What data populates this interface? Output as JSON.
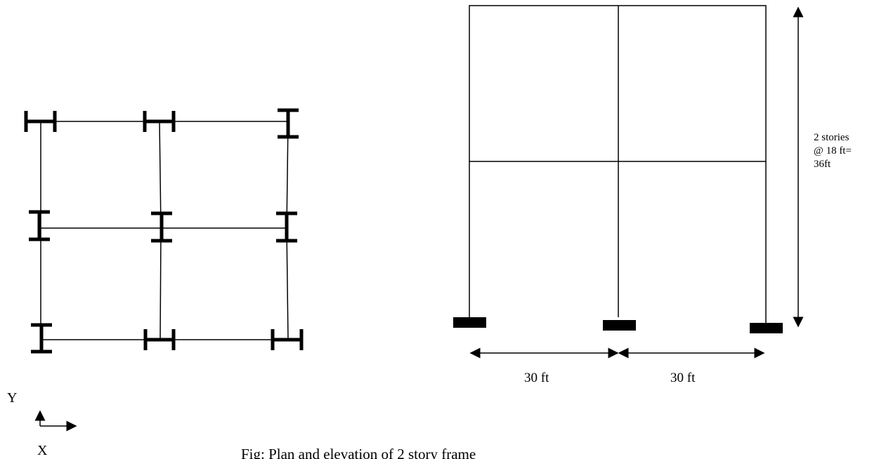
{
  "plan": {
    "axis_x_label": "X",
    "axis_y_label": "Y",
    "columns": [
      {
        "id": "A1",
        "orientation": "strong-axis-x"
      },
      {
        "id": "B1",
        "orientation": "strong-axis-x"
      },
      {
        "id": "C1",
        "orientation": "strong-axis-y"
      },
      {
        "id": "A2",
        "orientation": "strong-axis-y"
      },
      {
        "id": "B2",
        "orientation": "strong-axis-y"
      },
      {
        "id": "C2",
        "orientation": "strong-axis-y"
      },
      {
        "id": "A3",
        "orientation": "strong-axis-y"
      },
      {
        "id": "B3",
        "orientation": "strong-axis-x"
      },
      {
        "id": "C3",
        "orientation": "strong-axis-x"
      }
    ]
  },
  "elevation": {
    "stories": 2,
    "bays": 2,
    "span_label_left": "30 ft",
    "span_label_right": "30 ft",
    "height_label_line1": "2 stories",
    "height_label_line2": "@ 18 ft=",
    "height_label_line3": "36ft"
  },
  "caption": "Fig: Plan and elevation of 2 story frame"
}
